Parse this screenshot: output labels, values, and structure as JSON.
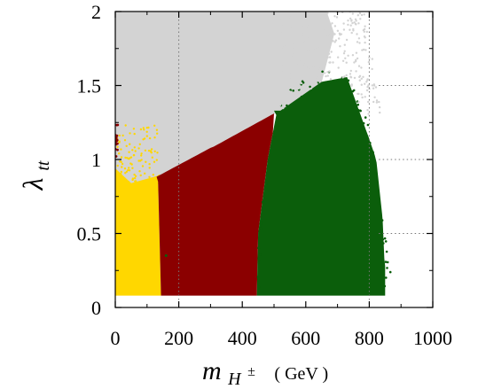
{
  "chart_data": {
    "type": "scatter",
    "title": "",
    "xlabel": {
      "main": "m",
      "subscript": "H",
      "superscript": "±",
      "unit": "( GeV )"
    },
    "ylabel": {
      "main": "λ",
      "subscript": "tt"
    },
    "xlim": [
      0,
      1000
    ],
    "ylim": [
      0,
      2
    ],
    "x_ticks": [
      0,
      200,
      400,
      600,
      800,
      1000
    ],
    "x_tick_labels": [
      "0",
      "200",
      "400",
      "600",
      "800",
      "1000"
    ],
    "y_ticks": [
      0,
      0.5,
      1,
      1.5,
      2
    ],
    "y_tick_labels": [
      "0",
      "0.5",
      "1",
      "1.5",
      "2"
    ],
    "grid": "dotted vertical line at x=200 and x=800; dotted horizontal segments at y=0.5, 1, 1.5 on the right",
    "legend": "none",
    "regions": [
      {
        "name_color": "gray",
        "color": "#d3d3d3",
        "x_range": [
          0,
          820
        ],
        "y_range": [
          0.83,
          2
        ],
        "note": "allowed region above the colored wedge; lower boundary rises from ~0.83 at x≈50 to ~1.33 at x≈520"
      },
      {
        "name_color": "yellow",
        "color": "#ffd700",
        "x_range": [
          0,
          145
        ],
        "y_range": [
          0.08,
          1.25
        ]
      },
      {
        "name_color": "darkred",
        "color": "#8b0000",
        "x_range": [
          130,
          480
        ],
        "y_range": [
          0.08,
          1.23
        ]
      },
      {
        "name_color": "darkgreen",
        "color": "#0b5e0b",
        "x_range": [
          445,
          850
        ],
        "y_range": [
          0.08,
          1.56
        ]
      }
    ],
    "annotations": []
  }
}
